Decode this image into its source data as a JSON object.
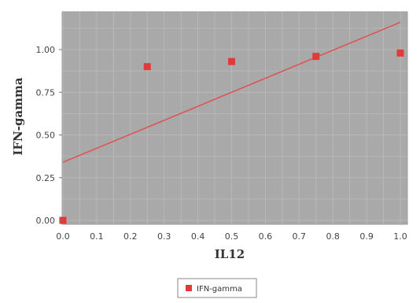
{
  "chart_data": {
    "type": "scatter",
    "xlabel": "IL12",
    "ylabel": "IFN-gamma",
    "xlim": [
      0,
      1.0
    ],
    "ylim": [
      0,
      1.2
    ],
    "xticks": [
      "0.0",
      "0.1",
      "0.2",
      "0.3",
      "0.4",
      "0.5",
      "0.6",
      "0.7",
      "0.8",
      "0.9",
      "1.0"
    ],
    "yticks": [
      "0.00",
      "0.25",
      "0.50",
      "0.75",
      "1.00"
    ],
    "series": [
      {
        "name": "IFN-gamma",
        "color": "#e03a3a",
        "x": [
          0.0,
          0.25,
          0.5,
          0.75,
          1.0
        ],
        "y": [
          0.0,
          0.9,
          0.93,
          0.96,
          0.98
        ]
      }
    ],
    "trendline": {
      "color": "#e05050",
      "x": [
        0.0,
        1.0
      ],
      "y": [
        0.34,
        1.16
      ]
    },
    "grid": true,
    "plot_background": "#a9a9a9",
    "legend": {
      "position": "bottom",
      "entries": [
        "IFN-gamma"
      ]
    }
  }
}
